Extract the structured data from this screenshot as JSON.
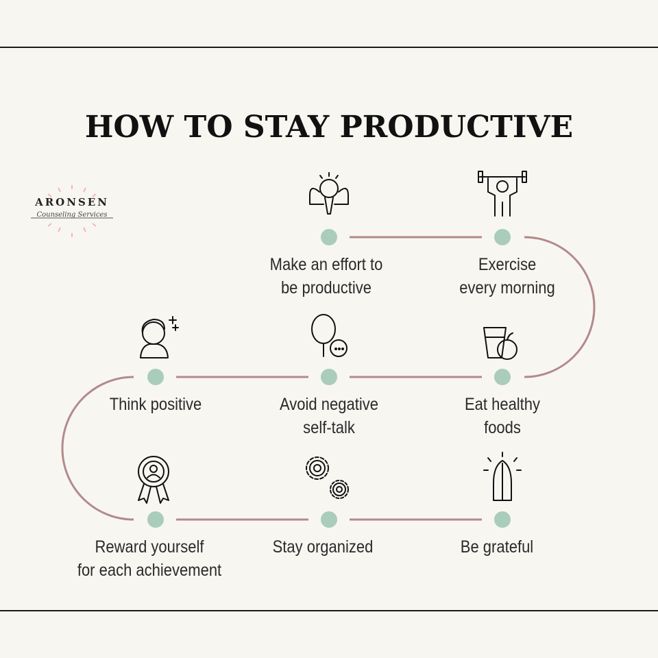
{
  "title": "HOW TO STAY PRODUCTIVE",
  "logo": {
    "brand": "ARONSEN",
    "tagline": "Counseling Services"
  },
  "colors": {
    "background": "#f8f6f1",
    "dot": "#a9cdb9",
    "connector": "#b28a8c",
    "text": "#2a2a2a"
  },
  "steps": [
    {
      "label1": "Make an effort to",
      "label2": "be productive",
      "icon": "lightbulb-muscle-icon"
    },
    {
      "label1": "Exercise",
      "label2": "every morning",
      "icon": "weightlifter-icon"
    },
    {
      "label1": "Eat healthy",
      "label2": "foods",
      "icon": "juice-apple-icon"
    },
    {
      "label1": "Avoid negative",
      "label2": "self-talk",
      "icon": "mirror-speech-icon"
    },
    {
      "label1": "Think positive",
      "label2": "",
      "icon": "woman-sparkle-icon"
    },
    {
      "label1": "Reward yourself",
      "label2": "for each achievement",
      "icon": "award-ribbon-icon"
    },
    {
      "label1": "Stay organized",
      "label2": "",
      "icon": "gears-icon"
    },
    {
      "label1": "Be grateful",
      "label2": "",
      "icon": "praying-hands-icon"
    }
  ]
}
